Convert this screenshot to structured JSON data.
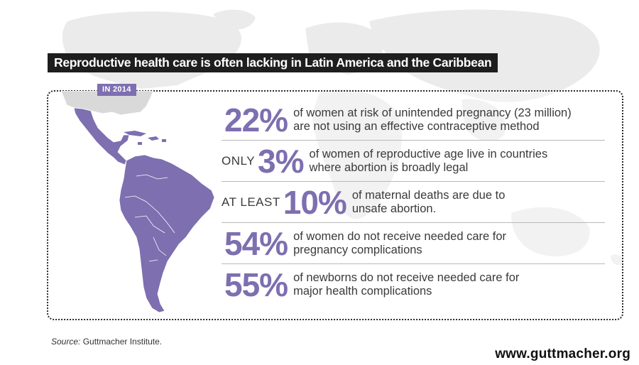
{
  "title": "Reproductive health care is often lacking in Latin America and the Caribbean",
  "badge": "IN 2014",
  "stats": [
    {
      "prefix": "",
      "value": "22%",
      "line1": "of women at risk of unintended pregnancy (23 million)",
      "line2": "are not using an effective contraceptive method"
    },
    {
      "prefix": "ONLY",
      "value": "3%",
      "line1": "of women of reproductive age live in countries",
      "line2": "where abortion is broadly legal"
    },
    {
      "prefix": "AT LEAST",
      "value": "10%",
      "line1": "of maternal deaths are due to",
      "line2": "unsafe abortion."
    },
    {
      "prefix": "",
      "value": "54%",
      "line1": "of women do not receive needed care for",
      "line2": "pregnancy complications"
    },
    {
      "prefix": "",
      "value": "55%",
      "line1": "of newborns do not receive needed care for",
      "line2": "major health complications"
    }
  ],
  "source": {
    "label": "Source:",
    "text": "Guttmacher Institute."
  },
  "url": "www.guttmacher.org",
  "colors": {
    "accent": "#7d6fb0",
    "title_bg": "#1e1e1e",
    "map_bg": "#e9e9e9"
  }
}
